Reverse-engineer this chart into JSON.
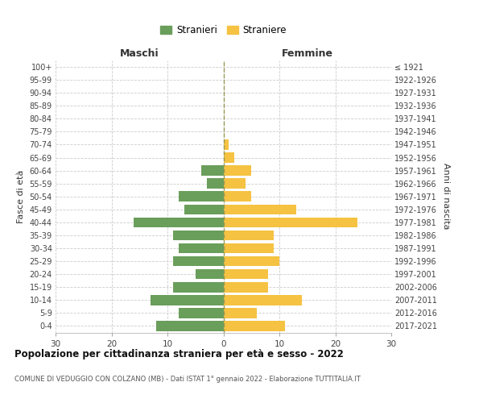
{
  "age_groups": [
    "0-4",
    "5-9",
    "10-14",
    "15-19",
    "20-24",
    "25-29",
    "30-34",
    "35-39",
    "40-44",
    "45-49",
    "50-54",
    "55-59",
    "60-64",
    "65-69",
    "70-74",
    "75-79",
    "80-84",
    "85-89",
    "90-94",
    "95-99",
    "100+"
  ],
  "birth_years": [
    "2017-2021",
    "2012-2016",
    "2007-2011",
    "2002-2006",
    "1997-2001",
    "1992-1996",
    "1987-1991",
    "1982-1986",
    "1977-1981",
    "1972-1976",
    "1967-1971",
    "1962-1966",
    "1957-1961",
    "1952-1956",
    "1947-1951",
    "1942-1946",
    "1937-1941",
    "1932-1936",
    "1927-1931",
    "1922-1926",
    "≤ 1921"
  ],
  "males": [
    12,
    8,
    13,
    9,
    5,
    9,
    8,
    9,
    16,
    7,
    8,
    3,
    4,
    0,
    0,
    0,
    0,
    0,
    0,
    0,
    0
  ],
  "females": [
    11,
    6,
    14,
    8,
    8,
    10,
    9,
    9,
    24,
    13,
    5,
    4,
    5,
    2,
    1,
    0,
    0,
    0,
    0,
    0,
    0
  ],
  "male_color": "#6a9e5b",
  "female_color": "#f5c242",
  "title": "Popolazione per cittadinanza straniera per età e sesso - 2022",
  "subtitle": "COMUNE DI VEDUGGIO CON COLZANO (MB) - Dati ISTAT 1° gennaio 2022 - Elaborazione TUTTITALIA.IT",
  "xlabel_left": "Maschi",
  "xlabel_right": "Femmine",
  "ylabel": "Fasce di età",
  "ylabel_right": "Anni di nascita",
  "legend_male": "Stranieri",
  "legend_female": "Straniere",
  "xlim": 30,
  "background_color": "#ffffff",
  "grid_color": "#cccccc"
}
